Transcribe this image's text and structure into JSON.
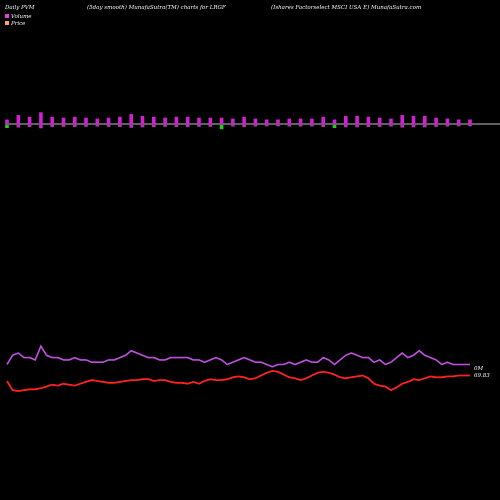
{
  "header": {
    "left": "Daily PVM",
    "center": "(5day smooth) MunafaSutra(TM) charts for LRGF",
    "right": "(Ishares Factorselect MSCI USA E) MunafaSutra.com"
  },
  "legend": {
    "volume_label": "Volume",
    "price_label": "Price",
    "volume_color": "#e040e0",
    "price_color": "#ff9a7a"
  },
  "end_labels": {
    "volume": "0M",
    "price": "69.83"
  },
  "colors": {
    "background": "#000000",
    "baseline": "#ffffff",
    "bar_up": "#d020d0",
    "bar_down": "#22cc22",
    "volume_line": "#c050e0",
    "price_line": "#ff2222"
  },
  "chart_data": {
    "type": "line",
    "series": [
      {
        "name": "Volume",
        "values": [
          5,
          9,
          10,
          8,
          8,
          7,
          13,
          9,
          8,
          8,
          7,
          7,
          8,
          7,
          7,
          6,
          6,
          6,
          7,
          7,
          8,
          9,
          11,
          10,
          9,
          8,
          8,
          7,
          7,
          8,
          8,
          8,
          8,
          7,
          7,
          6,
          7,
          8,
          7,
          5,
          6,
          7,
          8,
          7,
          6,
          6,
          5,
          4,
          5,
          5,
          6,
          5,
          6,
          7,
          6,
          6,
          8,
          7,
          5,
          7,
          9,
          10,
          9,
          8,
          8,
          6,
          7,
          5,
          6,
          8,
          10,
          8,
          9,
          11,
          9,
          8,
          7,
          5,
          6,
          5,
          5,
          5,
          5
        ],
        "bar_direction": [
          "down",
          "up",
          "up",
          "down",
          "up",
          "down",
          "up",
          "up",
          "up",
          "down",
          "up",
          "up",
          "up",
          "up",
          "up",
          "up",
          "up",
          "up",
          "up",
          "up",
          "up",
          "up",
          "up",
          "up",
          "up",
          "up",
          "up",
          "up",
          "up",
          "up",
          "up",
          "up",
          "up",
          "up",
          "up",
          "up",
          "up",
          "up",
          "down",
          "up",
          "up",
          "up",
          "up",
          "up",
          "up",
          "up",
          "up",
          "up",
          "up",
          "up",
          "up",
          "up",
          "up",
          "up",
          "up",
          "up",
          "up",
          "down",
          "down",
          "up",
          "up",
          "up",
          "up",
          "up",
          "up",
          "up",
          "up",
          "up",
          "up",
          "up",
          "up",
          "up",
          "up",
          "up",
          "up",
          "up",
          "up",
          "up",
          "up",
          "up",
          "up",
          "up",
          "up"
        ]
      },
      {
        "name": "Price",
        "values": [
          69.2,
          68.2,
          68.1,
          68.2,
          68.3,
          68.3,
          68.4,
          68.6,
          68.8,
          68.7,
          68.9,
          68.8,
          68.7,
          68.9,
          69.1,
          69.3,
          69.2,
          69.1,
          69.0,
          69.0,
          69.1,
          69.2,
          69.3,
          69.3,
          69.4,
          69.4,
          69.2,
          69.3,
          69.3,
          69.1,
          69.0,
          69.0,
          68.9,
          69.1,
          68.9,
          69.2,
          69.4,
          69.3,
          69.3,
          69.4,
          69.6,
          69.7,
          69.6,
          69.4,
          69.5,
          69.8,
          70.1,
          70.3,
          70.2,
          69.9,
          69.6,
          69.5,
          69.3,
          69.5,
          69.8,
          70.1,
          70.2,
          70.1,
          69.9,
          69.6,
          69.5,
          69.6,
          69.7,
          69.8,
          69.5,
          68.9,
          68.7,
          68.6,
          68.2,
          68.5,
          68.9,
          69.1,
          69.4,
          69.3,
          69.5,
          69.7,
          69.6,
          69.6,
          69.7,
          69.7,
          69.8,
          69.8,
          69.8
        ]
      }
    ]
  }
}
